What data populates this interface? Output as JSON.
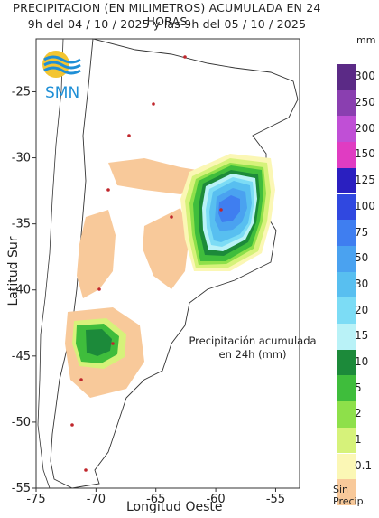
{
  "title": {
    "line1": "PRECIPITACION (EN MILIMETROS) ACUMULADA EN 24 HORAS",
    "line2": "9h del 04 / 10 / 2025  y las 9h del 05 / 10 / 2025"
  },
  "logo_text": "SMN",
  "axes": {
    "ylabel": "Latitud Sur",
    "xlabel": "Longitud Oeste",
    "x_ticks": [
      "-75",
      "-70",
      "-65",
      "-60",
      "-55"
    ],
    "y_ticks": [
      "-25",
      "-30",
      "-35",
      "-40",
      "-45",
      "-50",
      "-55"
    ],
    "xlim": [
      -75,
      -53
    ],
    "ylim": [
      -55,
      -21
    ]
  },
  "annotation": {
    "line1": "Precipitación acumulada",
    "line2": "en 24h (mm)"
  },
  "legend": {
    "unit": "mm",
    "no_precip_line1": "Sin",
    "no_precip_line2": "Precip.",
    "classes": [
      {
        "label": "300",
        "color": "#5b2a86"
      },
      {
        "label": "250",
        "color": "#8a3fb0"
      },
      {
        "label": "200",
        "color": "#c04fd6"
      },
      {
        "label": "150",
        "color": "#e03cc2"
      },
      {
        "label": "125",
        "color": "#2a1fc0"
      },
      {
        "label": "100",
        "color": "#3048e0"
      },
      {
        "label": "75",
        "color": "#3f7ef0"
      },
      {
        "label": "50",
        "color": "#4aa2f0"
      },
      {
        "label": "30",
        "color": "#58bff0"
      },
      {
        "label": "20",
        "color": "#7cdcf5"
      },
      {
        "label": "15",
        "color": "#b9f2f7"
      },
      {
        "label": "10",
        "color": "#1c8a3a"
      },
      {
        "label": "5",
        "color": "#3fbd3c"
      },
      {
        "label": "2",
        "color": "#8ee04a"
      },
      {
        "label": "1",
        "color": "#d6f27a"
      },
      {
        "label": "0.1",
        "color": "#fbf7b5"
      },
      {
        "label": "",
        "color": "#f8c99a"
      }
    ]
  }
}
